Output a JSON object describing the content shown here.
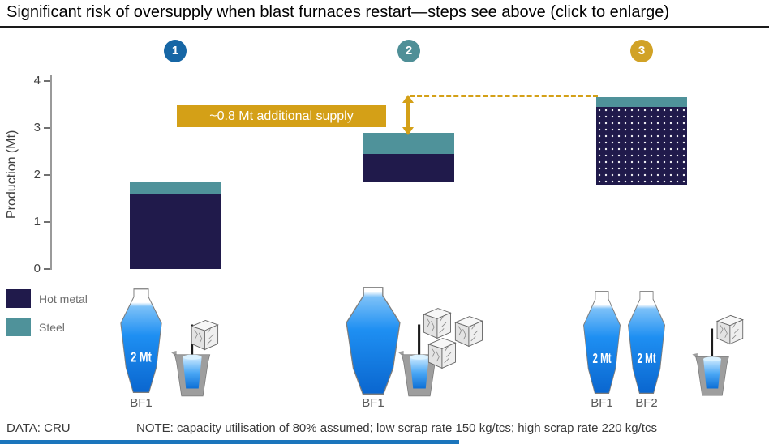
{
  "title": "Significant risk of oversupply when blast furnaces restart—steps see above (click to enlarge)",
  "steps": [
    "1",
    "2",
    "3"
  ],
  "axis": {
    "ylabel": "Production (Mt)",
    "ticks": [
      "4",
      "3",
      "2",
      "1",
      "0"
    ]
  },
  "annotation": {
    "label": "~0.8 Mt additional supply"
  },
  "legend": [
    {
      "label": "Hot metal",
      "color": "#201a4b"
    },
    {
      "label": "Steel",
      "color": "#4f929a"
    }
  ],
  "colors": {
    "hot_metal": "#201a4b",
    "steel": "#4f929a",
    "gold": "#d4a017",
    "step1": "#1666a5",
    "step2": "#4f8f97",
    "step3": "#d1a226"
  },
  "furnaces": {
    "group1": {
      "furnace_label": "2 Mt",
      "bf_label": "BF1"
    },
    "group2": {
      "bf_label": "BF1"
    },
    "group3": {
      "furnace1_label": "2 Mt",
      "furnace2_label": "2 Mt",
      "bf1_label": "BF1",
      "bf2_label": "BF2"
    }
  },
  "footer": {
    "source": "DATA: CRU",
    "note": "NOTE: capacity utilisation of 80% assumed; low scrap rate 150 kg/tcs; high scrap rate 220 kg/tcs"
  },
  "chart_data": {
    "type": "bar",
    "title": "Significant risk of oversupply when blast furnaces restart",
    "ylabel": "Production (Mt)",
    "ylim": [
      0,
      4
    ],
    "yticks": [
      0,
      1,
      2,
      3,
      4
    ],
    "categories": [
      "1",
      "2",
      "3"
    ],
    "series": [
      {
        "name": "Hot metal",
        "color": "#201a4b",
        "segments": [
          {
            "from": 0,
            "to": 1.6
          },
          {
            "from": 1.85,
            "to": 2.45
          },
          {
            "from": 1.8,
            "to": 3.45,
            "dotted": true
          }
        ]
      },
      {
        "name": "Steel",
        "color": "#4f929a",
        "segments": [
          {
            "from": 1.6,
            "to": 1.85
          },
          {
            "from": 2.45,
            "to": 2.9
          },
          {
            "from": 3.45,
            "to": 3.65
          }
        ]
      }
    ],
    "annotation": {
      "label": "~0.8 Mt additional supply",
      "from_level": 2.9,
      "to_level": 3.65
    },
    "legend": [
      "Hot metal",
      "Steel"
    ],
    "legend_position": "bottom-left",
    "grid": false
  }
}
